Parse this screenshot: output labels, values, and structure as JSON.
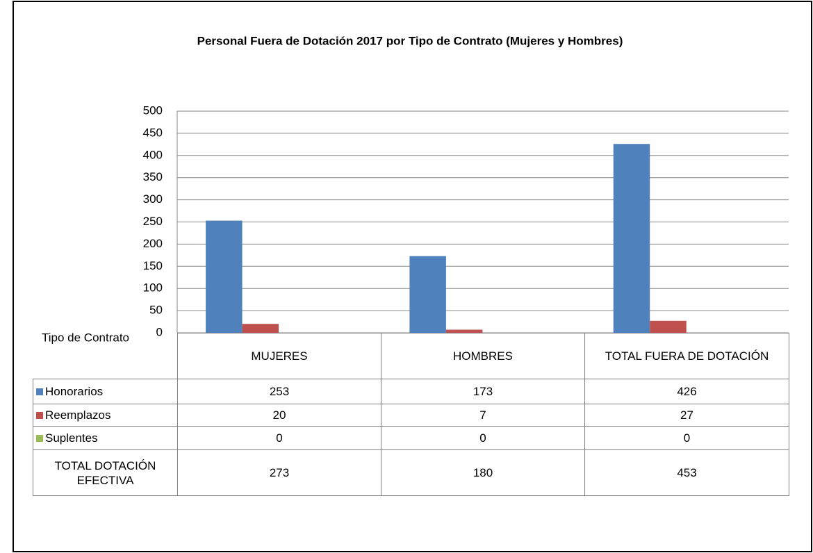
{
  "chart_data": {
    "type": "bar",
    "title": "Personal Fuera de Dotación 2017 por Tipo de Contrato (Mujeres y Hombres)",
    "table_header": "Tipo de Contrato",
    "categories": [
      "MUJERES",
      "HOMBRES",
      "TOTAL FUERA DE DOTACIÓN"
    ],
    "series": [
      {
        "name": "Honorarios",
        "color": "#4f81bd",
        "values": [
          253,
          173,
          426
        ]
      },
      {
        "name": "Reemplazos",
        "color": "#c0504d",
        "values": [
          20,
          7,
          27
        ]
      },
      {
        "name": "Suplentes",
        "color": "#9bbb59",
        "values": [
          0,
          0,
          0
        ]
      }
    ],
    "total_row": {
      "label": "TOTAL DOTACIÓN EFECTIVA",
      "values": [
        273,
        180,
        453
      ]
    },
    "ylim": [
      0,
      500
    ],
    "yticks": [
      0,
      50,
      100,
      150,
      200,
      250,
      300,
      350,
      400,
      450,
      500
    ],
    "grid": true
  }
}
